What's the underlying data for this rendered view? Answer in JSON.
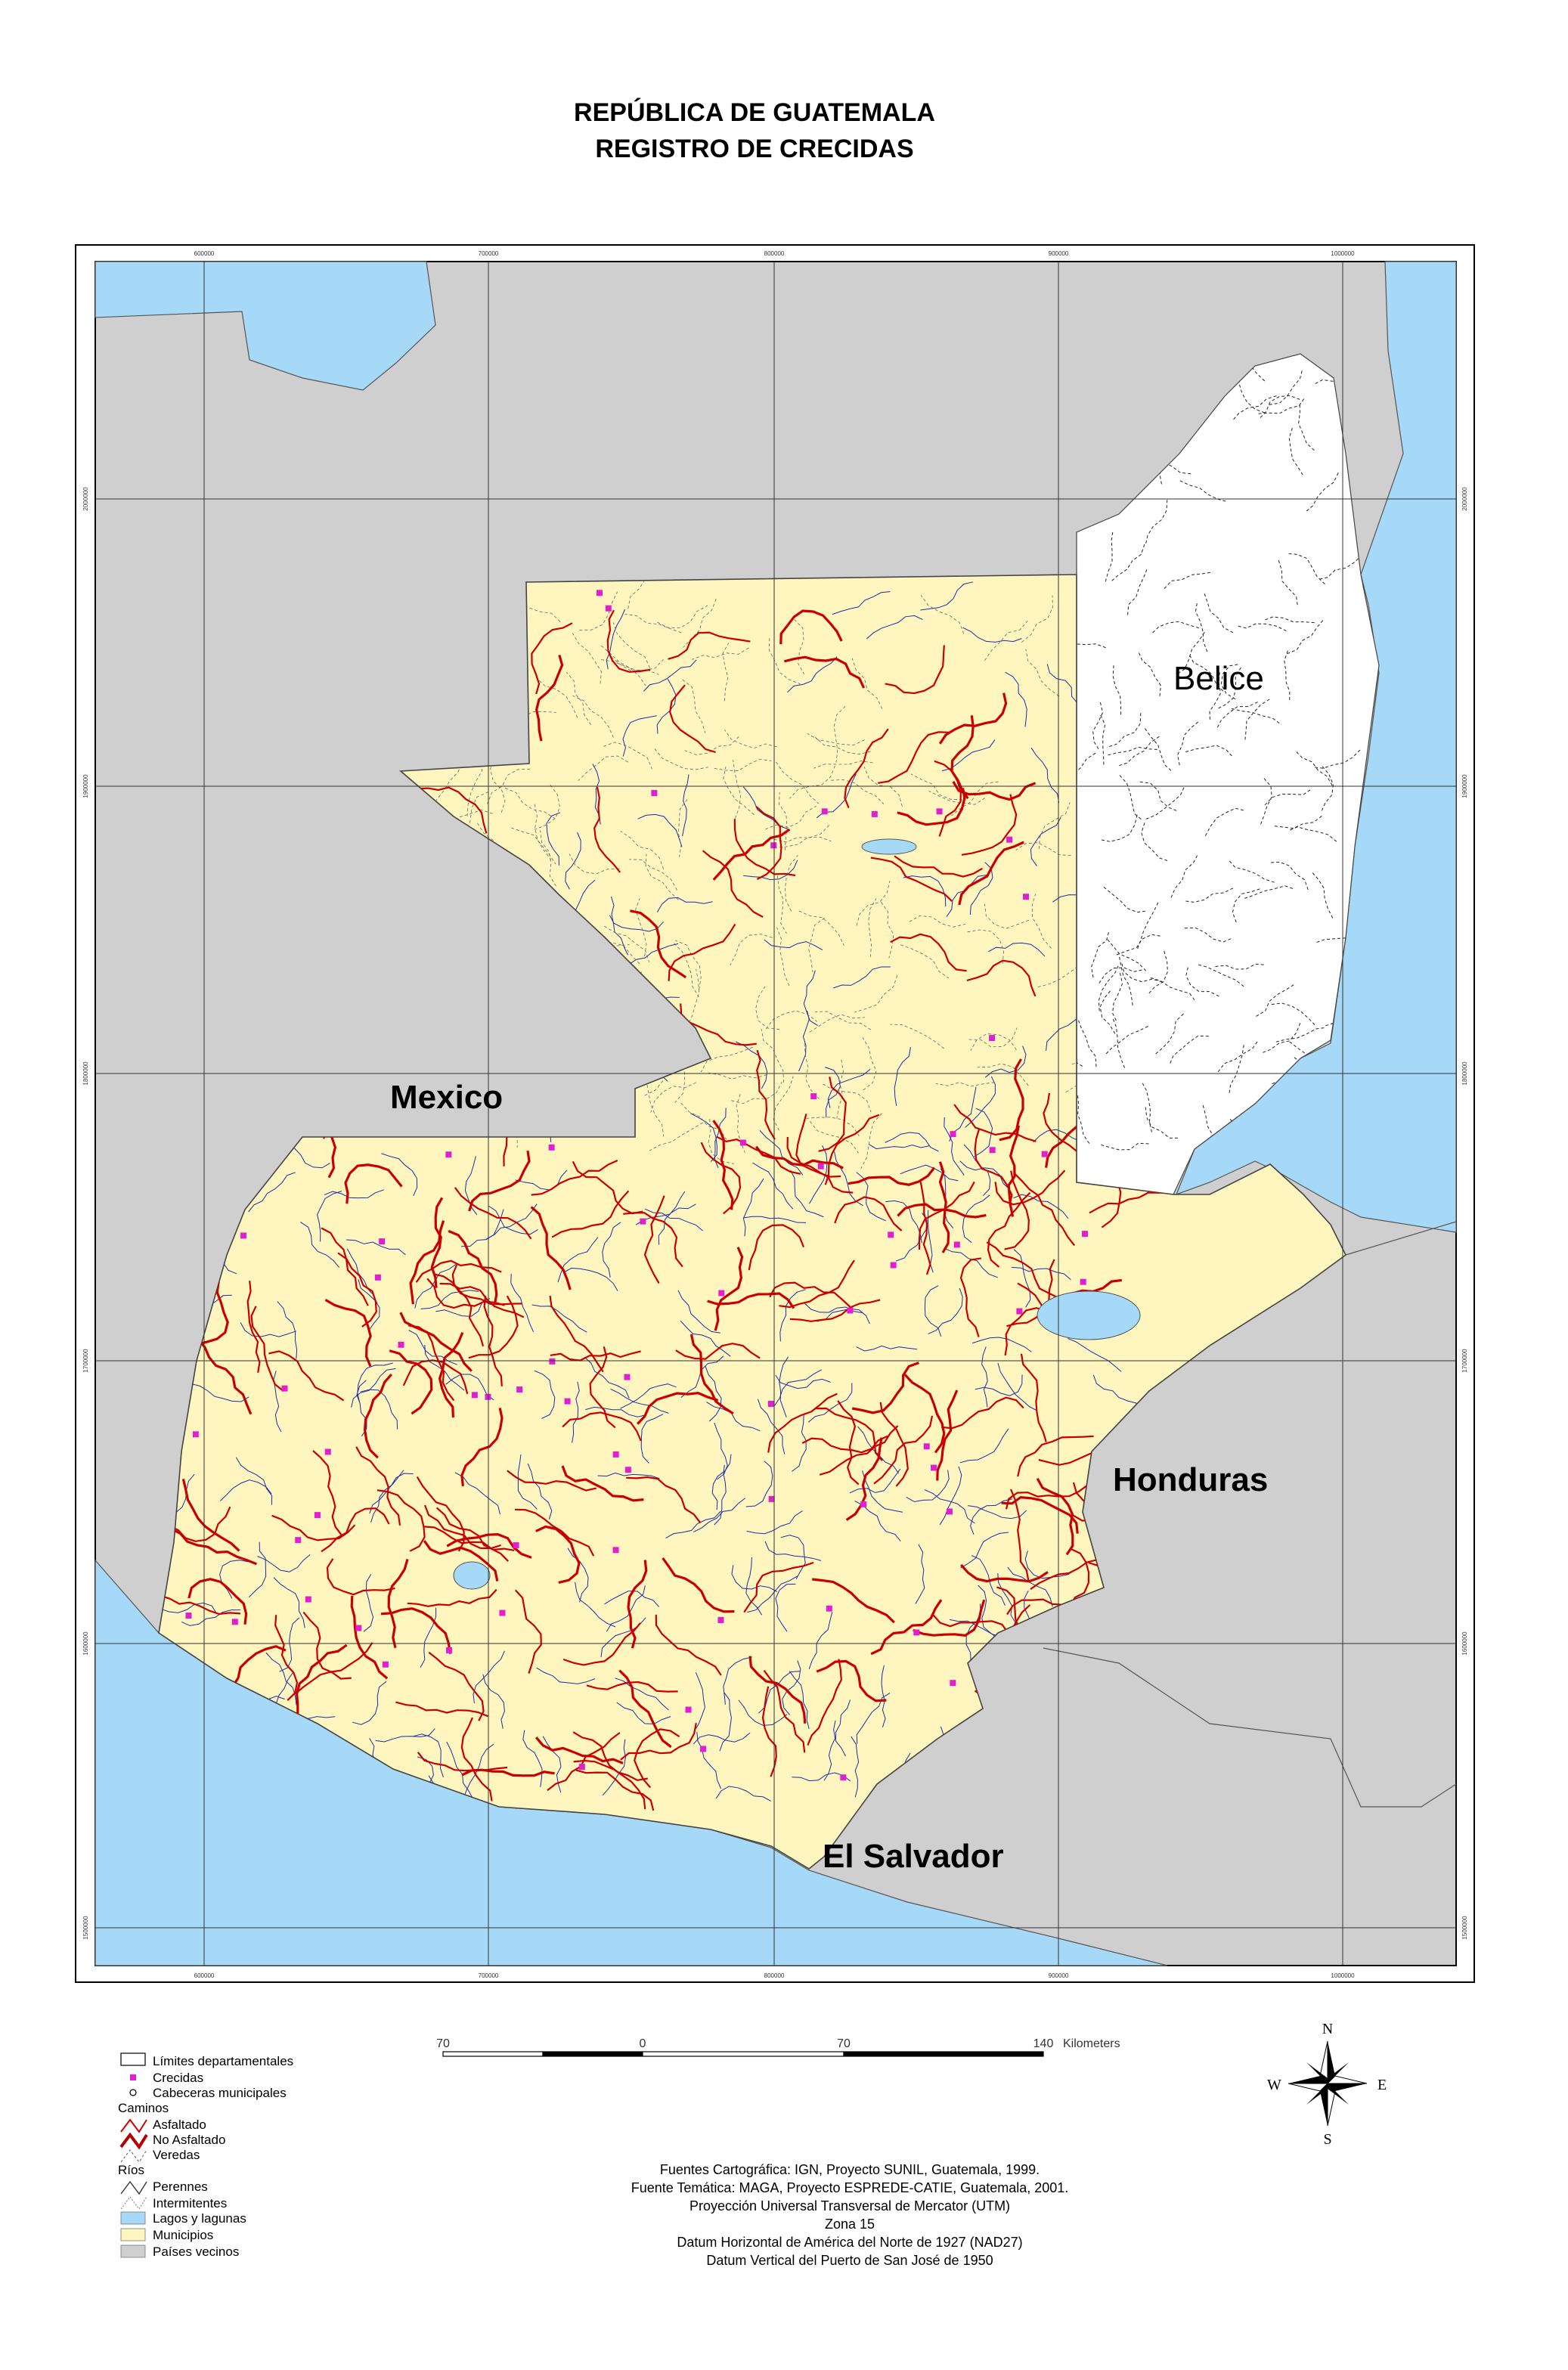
{
  "header": {
    "title": "REPÚBLICA DE GUATEMALA",
    "subtitle": "REGISTRO DE CRECIDAS"
  },
  "map": {
    "labels": [
      "Mexico",
      "Belice",
      "Honduras",
      "El Salvador"
    ],
    "grid": {
      "x_labels": [
        "600000",
        "700000",
        "800000",
        "900000",
        "1000000"
      ],
      "y_labels": [
        "2000000",
        "1900000",
        "1800000",
        "1700000",
        "1600000",
        "1500000"
      ]
    }
  },
  "scale_bar": {
    "labels": [
      "70",
      "0",
      "70",
      "140"
    ],
    "unit": "Kilometers"
  },
  "compass": {
    "north": "N",
    "east": "E",
    "south": "S",
    "west": "W"
  },
  "legend": {
    "items": [
      "Límites departamentales",
      "Crecidas",
      "Cabeceras municipales",
      "Caminos",
      "Asfaltado",
      "No Asfaltado",
      "Veredas",
      "Ríos",
      "Perennes",
      "Intermitentes",
      "Lagos y lagunas",
      "Municipios",
      "Países vecinos"
    ]
  },
  "sources": [
    "Fuentes Cartográfica: IGN, Proyecto SUNIL, Guatemala, 1999.",
    "Fuente Temática: MAGA, Proyecto ESPREDE-CATIE, Guatemala, 2001.",
    "Proyección Universal Transversal de Mercator (UTM)",
    "Zona 15",
    "Datum Horizontal de América del Norte de 1927 (NAD27)",
    "Datum Vertical del Puerto de San José de 1950"
  ]
}
